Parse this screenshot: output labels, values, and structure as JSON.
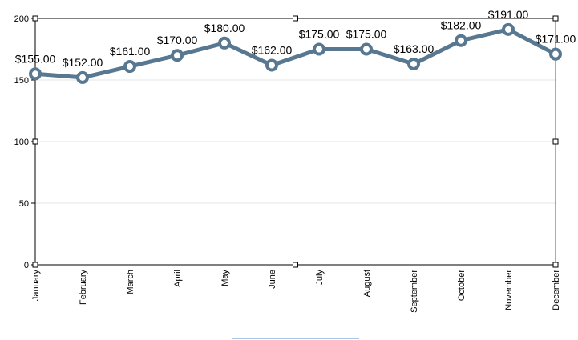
{
  "chart_data": {
    "type": "line",
    "title": "",
    "xlabel": "",
    "ylabel": "",
    "categories": [
      "January",
      "February",
      "March",
      "April",
      "May",
      "June",
      "July",
      "August",
      "September",
      "October",
      "November",
      "December"
    ],
    "series": [
      {
        "values": [
          155,
          152,
          161,
          170,
          180,
          162,
          175,
          175,
          163,
          182,
          191,
          171
        ],
        "labels": [
          "$155.00",
          "$152.00",
          "$161.00",
          "$170.00",
          "$180.00",
          "$162.00",
          "$175.00",
          "$175.00",
          "$163.00",
          "$182.00",
          "$191.00",
          "$171.00"
        ],
        "color": "#587891"
      }
    ],
    "ylim": [
      0,
      200
    ],
    "yticks": [
      "0",
      "50",
      "100",
      "150",
      "200"
    ],
    "grid": true,
    "legend": "none"
  }
}
